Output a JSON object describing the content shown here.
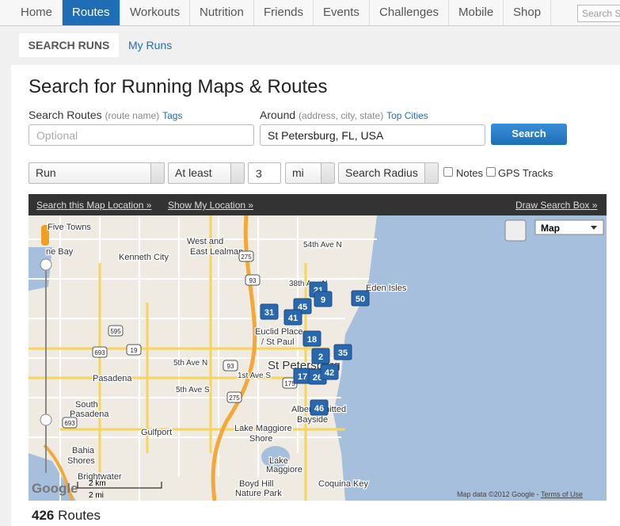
{
  "nav": {
    "items": [
      "Home",
      "Routes",
      "Workouts",
      "Nutrition",
      "Friends",
      "Events",
      "Challenges",
      "Mobile",
      "Shop"
    ],
    "search_placeholder": "Search S"
  },
  "tabs": [
    "SEARCH RUNS",
    "My Runs"
  ],
  "title": "Search for Running Maps & Routes",
  "form": {
    "search_routes": {
      "label": "Search Routes",
      "hint": "(route name)",
      "link": "Tags",
      "placeholder": "Optional"
    },
    "around": {
      "label": "Around",
      "hint": "(address, city, state)",
      "link": "Top Cities",
      "value": "St Petersburg, FL, USA"
    },
    "button": "Search",
    "activity": "Run",
    "comparison": "At least",
    "distance": "3",
    "unit": "mi",
    "radius": "Search Radius",
    "checkboxes": [
      "Notes",
      "GPS Tracks"
    ]
  },
  "map": {
    "toolbar": [
      "Search this Map Location »",
      "Show My Location »",
      "Draw Search Box »"
    ],
    "type": "Map",
    "labels": [
      "Five Towns",
      "West and",
      "East Lealman",
      "Kenneth City",
      "ne Bay",
      "54th Ave N",
      "38th Ave N",
      "Eden Isles",
      "Euclid Place",
      "/ St Paul",
      "St Petersburg",
      "5th Ave N",
      "1st Ave S",
      "5th Ave S",
      "Pasadena",
      "South",
      "Pasadena",
      "Gulfport",
      "Lake Maggiore",
      "Shore",
      "Bayside",
      "Albert Whitted",
      "Bahia",
      "Shores",
      "Brightwater",
      "Lake",
      "Maggiore",
      "Boyd Hill",
      "Nature Park",
      "Coquina Key"
    ],
    "markers": [
      21,
      9,
      45,
      31,
      41,
      50,
      18,
      35,
      2,
      17,
      26,
      42,
      46
    ],
    "shields": [
      "275",
      "93",
      "595",
      "693",
      "19",
      "275",
      "93",
      "175",
      "693"
    ],
    "scale": [
      "2 km",
      "2 mi"
    ],
    "logo": "Google",
    "attribution": "Map data ©2012 Google - ",
    "terms": "Terms of Use"
  },
  "results": {
    "count": 426,
    "label": "Routes"
  }
}
